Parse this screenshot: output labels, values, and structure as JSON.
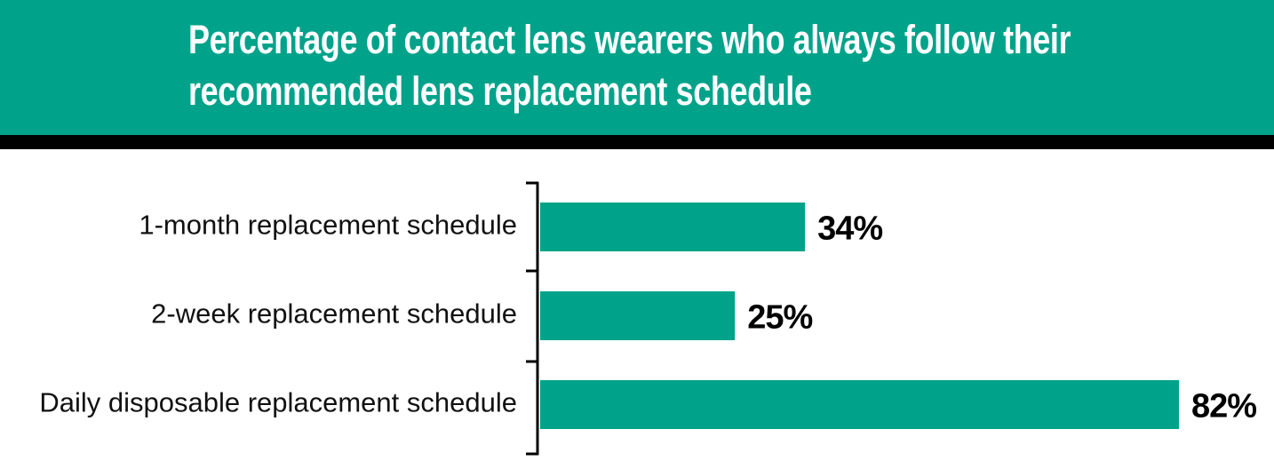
{
  "chart_data": {
    "type": "bar",
    "orientation": "horizontal",
    "title": "Percentage of contact lens wearers who always follow their recommended lens replacement schedule",
    "categories": [
      "1-month replacement schedule",
      "2-week replacement schedule",
      "Daily disposable replacement schedule"
    ],
    "values": [
      34,
      25,
      82
    ],
    "value_labels": [
      "34%",
      "25%",
      "82%"
    ],
    "color": "#00a38a"
  }
}
